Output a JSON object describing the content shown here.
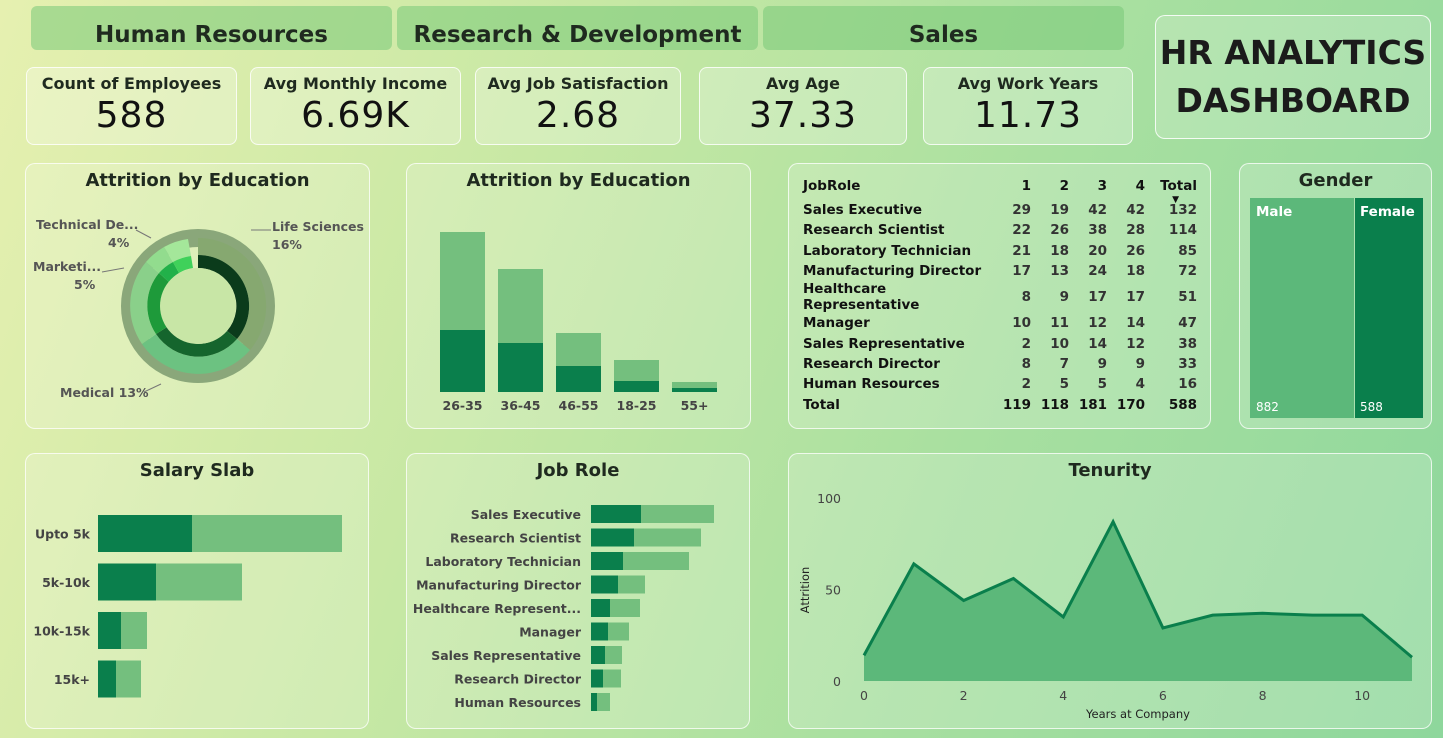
{
  "tabs": [
    "Human Resources",
    "Research & Development",
    "Sales"
  ],
  "dashboard_title": [
    "HR ANALYTICS",
    "DASHBOARD"
  ],
  "kpis": [
    {
      "label": "Count of Employees",
      "value": "588"
    },
    {
      "label": "Avg Monthly Income",
      "value": "6.69K"
    },
    {
      "label": "Avg Job Satisfaction",
      "value": "2.68"
    },
    {
      "label": "Avg Age",
      "value": "37.33"
    },
    {
      "label": "Avg Work Years",
      "value": "11.73"
    }
  ],
  "colors": {
    "dark": "#0a7f4c",
    "light": "#74bf7e",
    "area": "#5cb87a",
    "line": "#0a7f4c",
    "deep": "#0b3b1b"
  },
  "donut": {
    "title": "Attrition by Education",
    "labels": [
      {
        "name": "Technical De...",
        "pct": "4%"
      },
      {
        "name": "Marketi...",
        "pct": "5%"
      },
      {
        "name": "Life Sciences",
        "pct": "16%"
      },
      {
        "name": "Medical 13%",
        "pct": ""
      }
    ]
  },
  "chart_data": [
    {
      "type": "bar",
      "title": "Attrition by Education",
      "categories": [
        "26-35",
        "36-45",
        "46-55",
        "18-25",
        "55+"
      ],
      "series": [
        {
          "values": [
            62,
            49,
            26,
            11,
            4
          ]
        },
        {
          "values": [
            98,
            74,
            33,
            21,
            6
          ]
        }
      ]
    },
    {
      "type": "bar",
      "orientation": "horizontal",
      "title": "Salary Slab",
      "categories": [
        "Upto 5k",
        "5k-10k",
        "10k-15k",
        "15k+"
      ],
      "series": [
        {
          "values": [
            94,
            58,
            23,
            18
          ]
        },
        {
          "values": [
            150,
            86,
            26,
            25
          ]
        }
      ]
    },
    {
      "type": "bar",
      "orientation": "horizontal",
      "title": "Job Role",
      "categories": [
        "Sales Executive",
        "Research Scientist",
        "Laboratory Technician",
        "Manufacturing Director",
        "Healthcare Represent...",
        "Manager",
        "Sales Representative",
        "Research Director",
        "Human Resources"
      ],
      "series": [
        {
          "values": [
            50,
            43,
            32,
            27,
            19,
            17,
            14,
            12,
            6
          ]
        },
        {
          "values": [
            73,
            67,
            66,
            27,
            30,
            21,
            17,
            18,
            13
          ]
        }
      ]
    },
    {
      "type": "table",
      "title": "JobRole",
      "columns": [
        "JobRole",
        "1",
        "2",
        "3",
        "4",
        "Total"
      ],
      "rows": [
        [
          "Sales Executive",
          "29",
          "19",
          "42",
          "42",
          "132"
        ],
        [
          "Research Scientist",
          "22",
          "26",
          "38",
          "28",
          "114"
        ],
        [
          "Laboratory Technician",
          "21",
          "18",
          "20",
          "26",
          "85"
        ],
        [
          "Manufacturing Director",
          "17",
          "13",
          "24",
          "18",
          "72"
        ],
        [
          "Healthcare Representative",
          "8",
          "9",
          "17",
          "17",
          "51"
        ],
        [
          "Manager",
          "10",
          "11",
          "12",
          "14",
          "47"
        ],
        [
          "Sales Representative",
          "2",
          "10",
          "14",
          "12",
          "38"
        ],
        [
          "Research Director",
          "8",
          "7",
          "9",
          "9",
          "33"
        ],
        [
          "Human Resources",
          "2",
          "5",
          "5",
          "4",
          "16"
        ]
      ],
      "total": [
        "Total",
        "119",
        "118",
        "181",
        "170",
        "588"
      ]
    },
    {
      "type": "bar",
      "title": "Gender",
      "categories": [
        "Male",
        "Female"
      ],
      "values": [
        882,
        588
      ]
    },
    {
      "type": "area",
      "title": "Tenurity",
      "xlabel": "Years at Company",
      "ylabel": "Attrition",
      "x": [
        0,
        1,
        2,
        3,
        4,
        5,
        6,
        7,
        8,
        9,
        10,
        11
      ],
      "y": [
        14,
        64,
        44,
        56,
        35,
        87,
        29,
        36,
        37,
        36,
        36,
        13
      ],
      "xticks": [
        0,
        2,
        4,
        6,
        8,
        10
      ],
      "yticks": [
        0,
        50,
        100
      ],
      "xlim": [
        0,
        11
      ],
      "ylim": [
        0,
        100
      ]
    }
  ]
}
